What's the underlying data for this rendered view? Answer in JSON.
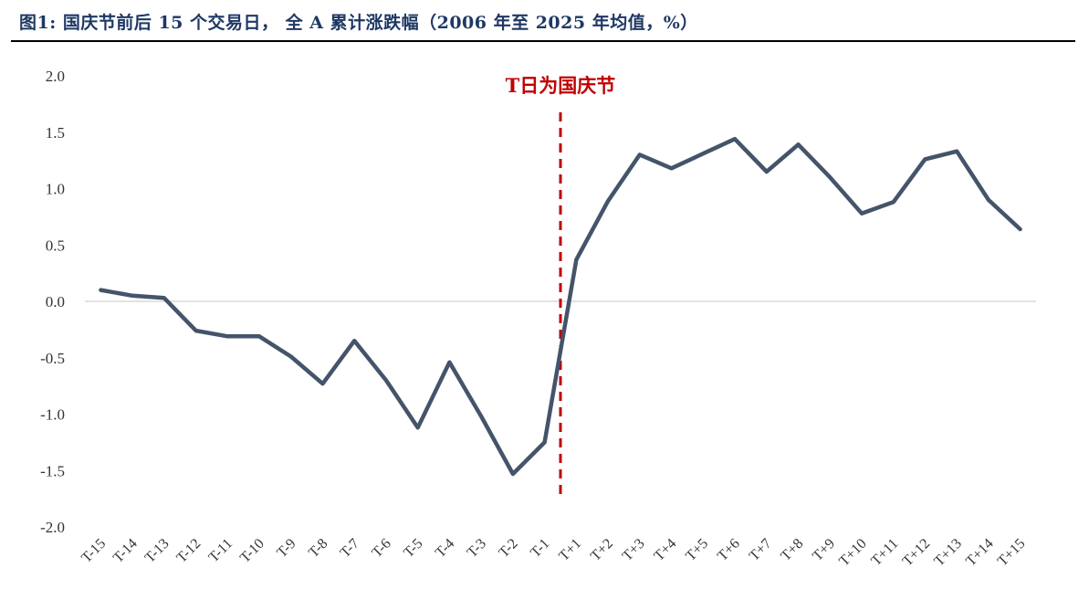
{
  "title": "图1:  国庆节前后 15 个交易日，    全 A 累计涨跌幅（2006 年至 2025 年均值，%）",
  "colors": {
    "title": "#1f3864",
    "line": "#44546a",
    "marker": "#c00000",
    "zero_line": "#d9d9d9"
  },
  "chart_data": {
    "type": "line",
    "title": "",
    "xlabel": "",
    "ylabel": "",
    "ylim": [
      -2.0,
      2.0
    ],
    "ytick_step": 0.5,
    "grid": false,
    "categories": [
      "T-15",
      "T-14",
      "T-13",
      "T-12",
      "T-11",
      "T-10",
      "T-9",
      "T-8",
      "T-7",
      "T-6",
      "T-5",
      "T-4",
      "T-3",
      "T-2",
      "T-1",
      "T+1",
      "T+2",
      "T+3",
      "T+4",
      "T+5",
      "T+6",
      "T+7",
      "T+8",
      "T+9",
      "T+10",
      "T+11",
      "T+12",
      "T+13",
      "T+14",
      "T+15"
    ],
    "series": [
      {
        "name": "",
        "values": [
          0.1,
          0.05,
          0.03,
          -0.26,
          -0.31,
          -0.31,
          -0.49,
          -0.73,
          -0.35,
          -0.7,
          -1.12,
          -0.54,
          -1.02,
          -1.53,
          -1.25,
          0.37,
          0.89,
          1.3,
          1.18,
          1.31,
          1.44,
          1.15,
          1.39,
          1.1,
          0.78,
          0.88,
          1.26,
          1.33,
          0.9,
          0.64
        ]
      }
    ],
    "annotations": [
      {
        "text": "T日为国庆节",
        "type": "vline",
        "between": [
          "T-1",
          "T+1"
        ],
        "style": "dashed"
      }
    ]
  }
}
